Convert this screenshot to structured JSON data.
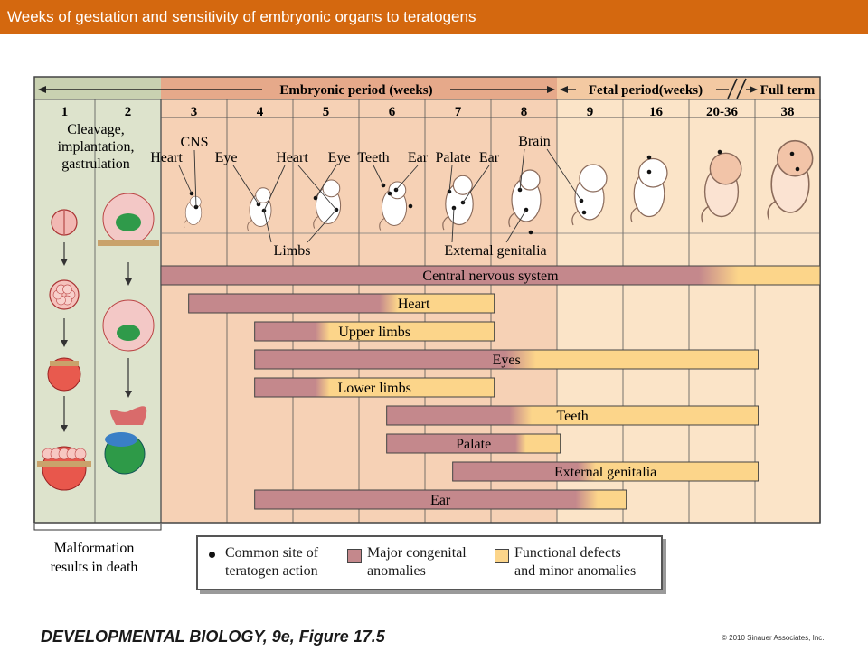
{
  "header": {
    "title": "Weeks of gestation and sensitivity of embryonic organs to teratogens"
  },
  "period_labels": {
    "embryonic": "Embryonic period (weeks)",
    "fetal": "Fetal period(weeks)",
    "full_term": "Full term"
  },
  "weeks": [
    "1",
    "2",
    "3",
    "4",
    "5",
    "6",
    "7",
    "8",
    "9",
    "16",
    "20-36",
    "38"
  ],
  "early_label": [
    "Cleavage,",
    "implantation,",
    "gastrulation"
  ],
  "structure_labels": {
    "heart_1": "Heart",
    "cns": "CNS",
    "eye_1": "Eye",
    "heart_2": "Heart",
    "eye_2": "Eye",
    "teeth": "Teeth",
    "ear_1": "Ear",
    "palate": "Palate",
    "ear_2": "Ear",
    "brain": "Brain",
    "limbs": "Limbs",
    "external_genitalia": "External genitalia"
  },
  "bars": [
    {
      "label": "Central nervous system",
      "start_week": "3",
      "major_until": "20-36",
      "end_week": "38"
    },
    {
      "label": "Heart",
      "start_week": "3",
      "major_until": "6",
      "end_week": "8"
    },
    {
      "label": "Upper limbs",
      "start_week": "4",
      "major_until": "5",
      "end_week": "8"
    },
    {
      "label": "Eyes",
      "start_week": "4",
      "major_until": "8",
      "end_week": "38"
    },
    {
      "label": "Lower limbs",
      "start_week": "4",
      "major_until": "5",
      "end_week": "8"
    },
    {
      "label": "Teeth",
      "start_week": "6",
      "major_until": "8",
      "end_week": "38"
    },
    {
      "label": "Palate",
      "start_week": "6",
      "major_until": "8",
      "end_week": "9"
    },
    {
      "label": "External genitalia",
      "start_week": "7",
      "major_until": "9",
      "end_week": "38"
    },
    {
      "label": "Ear",
      "start_week": "4",
      "major_until": "9",
      "end_week": "16"
    }
  ],
  "bottom_note": [
    "Malformation",
    "results in death"
  ],
  "legend": {
    "dot_label": [
      "Common site of",
      "teratogen action"
    ],
    "major_label": [
      "Major congenital",
      "anomalies"
    ],
    "minor_label": [
      "Functional defects",
      "and minor anomalies"
    ]
  },
  "colors": {
    "title_bar": "#d4680f",
    "major": "#c4888c",
    "minor": "#fcd58a",
    "early_panel": "#dde3cc",
    "embryonic_panel": "#f6d1b5",
    "fetal_panel": "#fbe4c8",
    "embryonic_header": "#e6a98a",
    "fetal_header": "#f3c9a2"
  },
  "footer": {
    "book": "DEVELOPMENTAL BIOLOGY, 9e, Figure 17.5",
    "copyright": "© 2010 Sinauer Associates, Inc."
  }
}
